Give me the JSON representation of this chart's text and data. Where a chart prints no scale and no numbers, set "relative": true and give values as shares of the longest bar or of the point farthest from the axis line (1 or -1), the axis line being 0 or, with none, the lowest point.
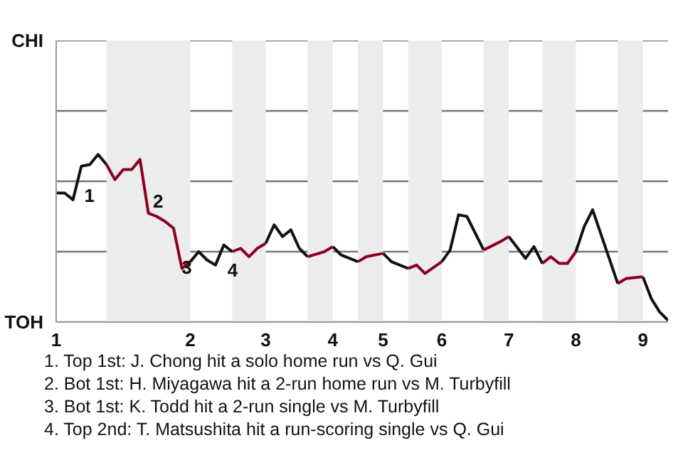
{
  "chart_data": {
    "type": "line",
    "relative": true,
    "categories": [
      "1",
      null,
      null,
      null,
      null,
      null,
      null,
      null,
      null,
      null,
      null,
      null,
      null,
      null,
      null,
      null,
      "2",
      null,
      null,
      null,
      null,
      null,
      null,
      null,
      null,
      "3",
      null,
      null,
      null,
      null,
      null,
      null,
      null,
      "4",
      null,
      null,
      null,
      null,
      null,
      "5",
      null,
      null,
      null,
      null,
      null,
      null,
      "6",
      null,
      null,
      null,
      null,
      null,
      null,
      null,
      "7",
      null,
      null,
      null,
      null,
      null,
      null,
      null,
      "8",
      null,
      null,
      null,
      null,
      null,
      null,
      null,
      "9",
      null,
      null,
      null
    ],
    "series": [
      {
        "color": "#111111",
        "values": [
          0.77,
          0.77,
          0.73,
          0.93,
          0.94,
          1,
          0.94,
          null,
          null,
          null,
          null,
          null,
          null,
          null,
          null,
          null,
          0.36,
          0.42,
          0.37,
          0.34,
          0.46,
          0.42,
          null,
          null,
          null,
          0.47,
          0.58,
          0.51,
          0.55,
          0.44,
          0.39,
          null,
          null,
          0.45,
          0.4,
          0.38,
          0.36,
          null,
          null,
          0.41,
          0.36,
          null,
          0.32,
          null,
          null,
          null,
          0.36,
          0.43,
          0.64,
          0.63,
          null,
          0.43,
          null,
          null,
          0.51,
          null,
          0.38,
          0.45,
          0.35,
          null,
          null,
          null,
          0.42,
          0.57,
          0.67,
          null,
          null,
          0.23,
          null,
          null,
          0.27,
          0.14,
          0.06,
          0.01
        ]
      },
      {
        "color": "#8b0021",
        "values": [
          null,
          null,
          null,
          null,
          null,
          null,
          0.94,
          0.85,
          0.91,
          0.91,
          0.97,
          0.65,
          0.63,
          0.6,
          0.56,
          0.32,
          0.36,
          null,
          null,
          null,
          null,
          0.42,
          0.44,
          0.39,
          0.44,
          0.47,
          null,
          null,
          null,
          null,
          0.39,
          null,
          0.42,
          0.45,
          null,
          null,
          0.36,
          0.39,
          null,
          0.41,
          null,
          null,
          0.32,
          0.34,
          0.29,
          null,
          0.36,
          null,
          null,
          null,
          null,
          0.43,
          null,
          0.48,
          0.51,
          null,
          null,
          null,
          0.35,
          0.39,
          0.35,
          0.35,
          0.42,
          null,
          null,
          null,
          null,
          0.23,
          0.26,
          null,
          0.27,
          null,
          null,
          null
        ]
      }
    ],
    "tick_labels": "x",
    "grid": false,
    "marker": "none",
    "line_style": "solid",
    "ref_lines": [
      {
        "axis": "y",
        "value": 0,
        "label": "TOH",
        "color": "#999999"
      },
      {
        "axis": "y",
        "value": 0.42,
        "label": null,
        "color": "#777777"
      },
      {
        "axis": "y",
        "value": 0.84,
        "label": null,
        "color": "#777777"
      },
      {
        "axis": "y",
        "value": 1.26,
        "label": null,
        "color": "#777777"
      },
      {
        "axis": "y",
        "value": 1.68,
        "label": "CHI",
        "color": "#777777"
      }
    ],
    "annotations": [
      "1",
      "2",
      "3",
      "4",
      "1. Top 1st: J. Chong hit a solo home run vs Q. Gui",
      "2. Bot 1st: H. Miyagawa hit a 2-run home run vs M. Turbyfill",
      "3. Bot 1st: K. Todd hit a 2-run single vs M. Turbyfill",
      "4. Top 2nd: T. Matsushita hit a run-scoring single vs Q. Gui"
    ]
  }
}
